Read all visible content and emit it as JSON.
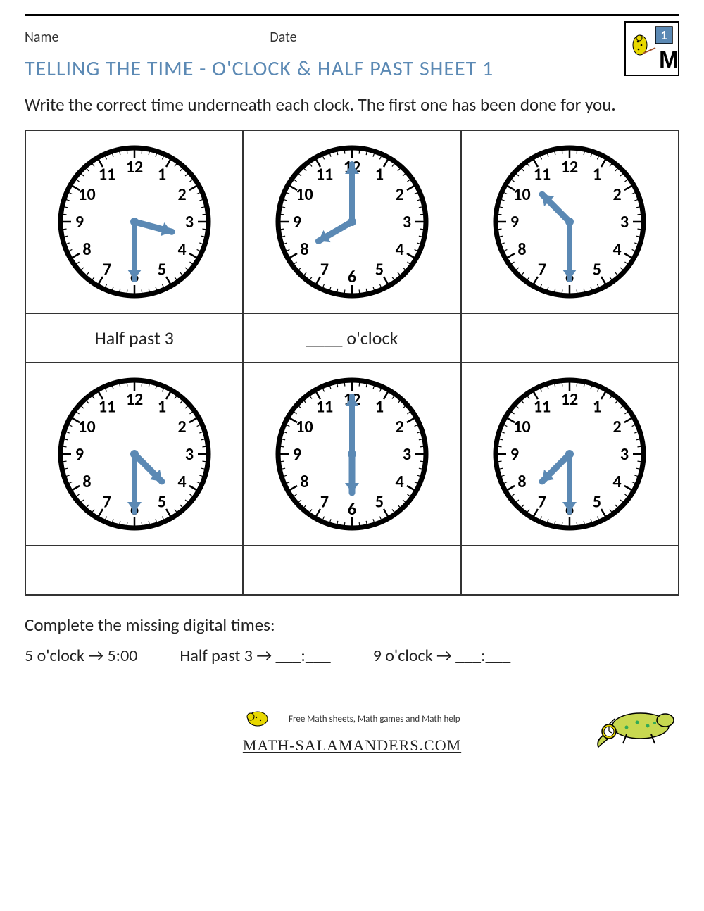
{
  "labels": {
    "name": "Name",
    "date": "Date"
  },
  "title": "TELLING THE TIME - O'CLOCK & HALF PAST SHEET 1",
  "instructions": "Write the correct time underneath each clock. The first one has been done for you.",
  "hand_color": "#5b89b4",
  "clock_face_stroke": "#000000",
  "clocks": [
    {
      "hour": 3,
      "minute": 30,
      "answer": "Half past 3"
    },
    {
      "hour": 8,
      "minute": 0,
      "answer": "____ o'clock"
    },
    {
      "hour": 10,
      "minute": 30,
      "answer": ""
    },
    {
      "hour": 4,
      "minute": 30,
      "answer": ""
    },
    {
      "hour": 6,
      "minute": 0,
      "answer": ""
    },
    {
      "hour": 7,
      "minute": 30,
      "answer": ""
    }
  ],
  "bottom_prompt": "Complete the missing digital times:",
  "digital_examples": [
    "5 o'clock → 5:00",
    "Half past 3 → ___:___",
    "9 o'clock → ___:___"
  ],
  "footer": {
    "tagline": "Free Math sheets, Math games and Math help",
    "url": "MATH-SALAMANDERS.COM"
  },
  "badge_number": "1"
}
